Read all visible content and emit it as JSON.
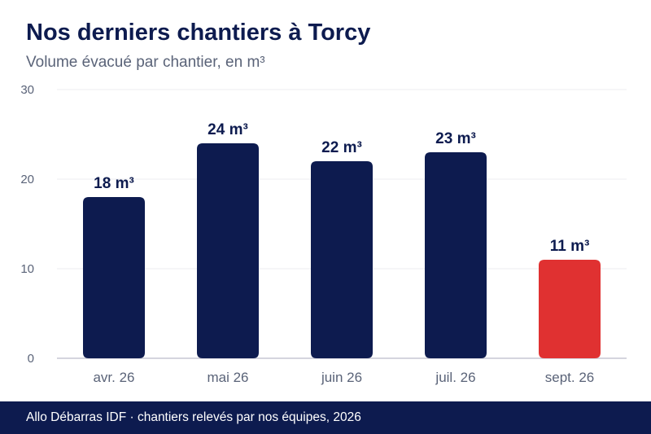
{
  "chart_data": {
    "type": "bar",
    "title": "Nos derniers chantiers à Torcy",
    "subtitle": "Volume évacué par chantier, en m³",
    "categories": [
      "avr. 26",
      "mai 26",
      "juin 26",
      "juil. 26",
      "sept. 26"
    ],
    "values": [
      18,
      24,
      22,
      23,
      11
    ],
    "value_labels": [
      "18 m³",
      "24 m³",
      "22 m³",
      "23 m³",
      "11 m³"
    ],
    "ylim": [
      0,
      30
    ],
    "yticks": [
      "0",
      "10",
      "20",
      "30"
    ],
    "grid": true,
    "colors": {
      "bar": "#0d1b4f",
      "highlight": "#e03131",
      "grid": "#ececf0",
      "axis": "#c7c7d4",
      "tick_text": "#5a6378"
    },
    "highlight_index": 4
  },
  "footer": {
    "text": "Allo Débarras IDF · chantiers relevés par nos équipes, 2026"
  }
}
